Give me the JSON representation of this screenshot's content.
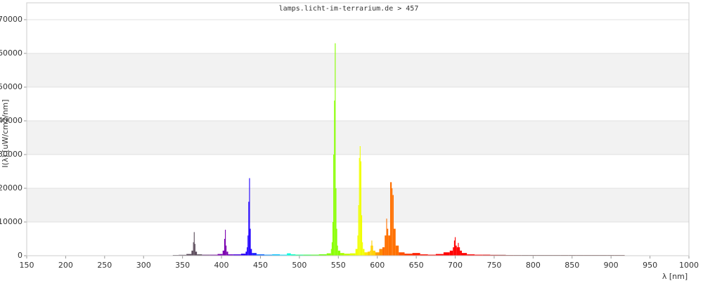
{
  "chart_data": {
    "type": "spectrum",
    "title": "lamps.licht-im-terrarium.de > 457",
    "x_label": "λ [nm]",
    "y_label": "I(λ) [uW/cm2/nm]",
    "xlim": [
      150,
      1000
    ],
    "xticks": [
      150,
      200,
      250,
      300,
      350,
      400,
      450,
      500,
      550,
      600,
      650,
      700,
      750,
      800,
      850,
      900,
      950,
      1000
    ],
    "ylim": [
      0,
      75000
    ],
    "yticks": [
      0,
      10000,
      20000,
      30000,
      40000,
      50000,
      60000,
      70000
    ],
    "grid": true,
    "band_color": "#f2f2f2",
    "x": [
      340,
      350,
      360,
      363,
      364,
      365,
      366,
      367,
      370,
      380,
      390,
      400,
      403,
      404,
      405,
      406,
      407,
      410,
      420,
      430,
      432,
      433,
      434,
      435,
      436,
      437,
      438,
      440,
      450,
      460,
      470,
      480,
      488,
      490,
      500,
      510,
      520,
      530,
      540,
      541,
      542,
      543,
      544,
      545,
      546,
      547,
      548,
      549,
      550,
      555,
      560,
      570,
      574,
      575,
      576,
      577,
      578,
      579,
      580,
      581,
      582,
      585,
      590,
      591,
      592,
      593,
      594,
      595,
      600,
      605,
      608,
      611,
      612,
      613,
      615,
      618,
      619,
      620,
      622,
      625,
      630,
      640,
      650,
      660,
      670,
      680,
      690,
      696,
      698,
      699,
      700,
      701,
      703,
      704,
      705,
      707,
      710,
      720,
      730,
      740,
      750,
      760,
      770,
      780,
      790,
      800,
      810,
      820,
      830,
      840,
      850,
      860,
      870,
      880,
      890,
      900,
      910,
      915
    ],
    "values": [
      200,
      250,
      500,
      1500,
      4000,
      7000,
      3500,
      1200,
      400,
      300,
      300,
      500,
      1500,
      5000,
      7700,
      3000,
      1200,
      400,
      400,
      600,
      1200,
      2500,
      6000,
      16000,
      23000,
      8000,
      2000,
      800,
      400,
      300,
      400,
      300,
      700,
      400,
      300,
      300,
      300,
      400,
      700,
      2000,
      4000,
      10000,
      30000,
      46000,
      63000,
      20000,
      8000,
      3000,
      1500,
      800,
      600,
      700,
      2000,
      6000,
      15000,
      29000,
      32500,
      28000,
      12000,
      4000,
      2000,
      1000,
      1200,
      1500,
      3000,
      4500,
      3000,
      1500,
      1000,
      2000,
      2500,
      6000,
      11000,
      8000,
      6000,
      21800,
      20000,
      18000,
      8000,
      3000,
      1000,
      600,
      800,
      400,
      300,
      500,
      1000,
      1500,
      2500,
      4500,
      5500,
      3000,
      2500,
      3800,
      2500,
      1500,
      800,
      400,
      300,
      300,
      250,
      250,
      200,
      200,
      200,
      200,
      200,
      200,
      200,
      200,
      200,
      200,
      200,
      200,
      200,
      200,
      200,
      200
    ],
    "colors": [
      "#5a4a5a",
      "#5a4a5a",
      "#5a4a5a",
      "#5a4a5a",
      "#5a4a5a",
      "#5a4a5a",
      "#5a4a5a",
      "#5a4a5a",
      "#5a4a5a",
      "#6a3a7a",
      "#7a1aa0",
      "#7a00b0",
      "#7a00b0",
      "#7a00b0",
      "#7a00b0",
      "#7a00b0",
      "#7a00b0",
      "#6a00c8",
      "#4a00e0",
      "#2a00f0",
      "#2000ff",
      "#2000ff",
      "#2000ff",
      "#2000ff",
      "#2000ff",
      "#2000ff",
      "#2000ff",
      "#1a20ff",
      "#0060ff",
      "#0090ff",
      "#00c0ff",
      "#00e0ff",
      "#00ffe0",
      "#00ffc0",
      "#00ff80",
      "#20ff40",
      "#40ff20",
      "#60ff00",
      "#88ff00",
      "#88ff00",
      "#88ff00",
      "#88ff00",
      "#88ff00",
      "#88ff00",
      "#88ff00",
      "#88ff00",
      "#88ff00",
      "#88ff00",
      "#88ff00",
      "#a8ff00",
      "#c0ff00",
      "#e0ff00",
      "#f0ff00",
      "#f0ff00",
      "#f0ff00",
      "#f0ff00",
      "#f0ff00",
      "#f0ff00",
      "#f0ff00",
      "#f0ff00",
      "#f0ff00",
      "#ffe800",
      "#ffd000",
      "#ffd000",
      "#ffd000",
      "#ffd000",
      "#ffd000",
      "#ffd000",
      "#ffa000",
      "#ff8a00",
      "#ff7000",
      "#ff7000",
      "#ff7000",
      "#ff7000",
      "#ff7000",
      "#ff7000",
      "#ff7000",
      "#ff7000",
      "#ff7000",
      "#ff7000",
      "#ff5000",
      "#ff3800",
      "#ff2000",
      "#ff1000",
      "#ff0800",
      "#ff0000",
      "#ff0000",
      "#ff0000",
      "#ff0000",
      "#ff0000",
      "#ff0000",
      "#ff0000",
      "#ff0000",
      "#ff0000",
      "#ff0000",
      "#ff0000",
      "#ff0000",
      "#ff0000",
      "#ff0000",
      "#e00000",
      "#b01010",
      "#902020",
      "#802828",
      "#703030",
      "#603838",
      "#603838",
      "#603838",
      "#603838",
      "#603838",
      "#603838",
      "#603838",
      "#603838",
      "#603838",
      "#603838",
      "#603838",
      "#603838",
      "#603838",
      "#603838"
    ]
  }
}
